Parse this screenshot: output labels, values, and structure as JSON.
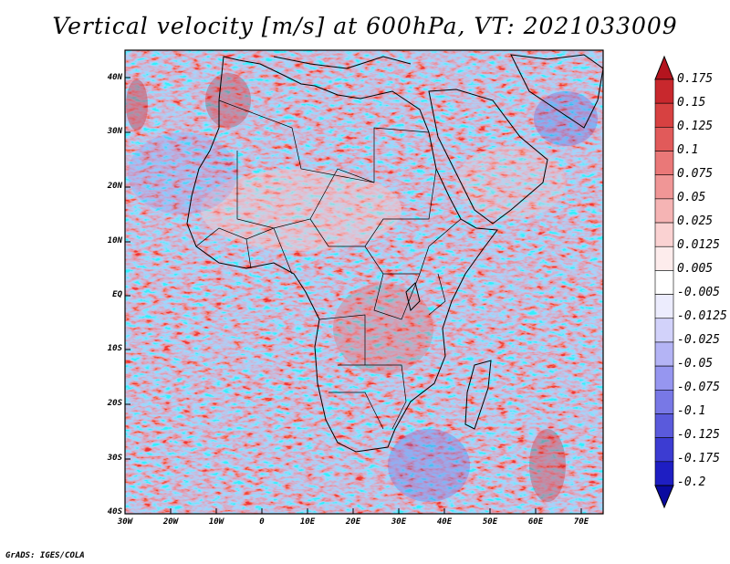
{
  "title": "Vertical velocity [m/s] at 600hPa, VT: 2021033009",
  "credit": "GrADS: IGES/COLA",
  "map": {
    "region": "Africa",
    "lon_range": [
      -30,
      75
    ],
    "lat_range": [
      -40,
      45
    ],
    "y_ticks": [
      "40N",
      "30N",
      "20N",
      "10N",
      "EQ",
      "10S",
      "20S",
      "30S",
      "40S"
    ],
    "x_ticks": [
      "30W",
      "20W",
      "10W",
      "0",
      "10E",
      "20E",
      "30E",
      "40E",
      "50E",
      "60E",
      "70E"
    ]
  },
  "colorbar": {
    "labels": [
      "0.175",
      "0.15",
      "0.125",
      "0.1",
      "0.075",
      "0.05",
      "0.025",
      "0.0125",
      "0.005",
      "-0.005",
      "-0.0125",
      "-0.025",
      "-0.05",
      "-0.075",
      "-0.1",
      "-0.125",
      "-0.175",
      "-0.2"
    ],
    "colors": [
      "#b4141e",
      "#c8282d",
      "#d74141",
      "#e15a5a",
      "#ea7878",
      "#f09696",
      "#f5b4b4",
      "#fad2d2",
      "#fdecec",
      "#ffffff",
      "#ececfd",
      "#d2d2fa",
      "#b4b4f5",
      "#9696f0",
      "#7878e6",
      "#5a5adc",
      "#3c3cd2",
      "#1e1ec3",
      "#0a0aa0"
    ]
  }
}
